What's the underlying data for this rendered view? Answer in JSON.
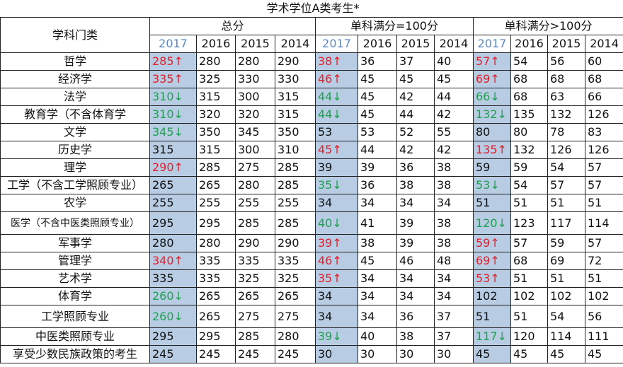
{
  "title": "学术学位A类考生*",
  "row_header": "学科门类",
  "groups": [
    "总分",
    "单科满分=100分",
    "单科满分>100分"
  ],
  "years": [
    "2017",
    "2016",
    "2015",
    "2014"
  ],
  "colors": {
    "up": "#e0202a",
    "down": "#1fa050",
    "highlight": "#b8cce4",
    "year2017": "#5b87c2"
  },
  "rows": [
    {
      "label": "哲学",
      "cells": [
        [
          "285↑",
          "up"
        ],
        [
          "280"
        ],
        [
          "280"
        ],
        [
          "290"
        ],
        [
          "38↑",
          "up"
        ],
        [
          "36"
        ],
        [
          "37"
        ],
        [
          "40"
        ],
        [
          "57↑",
          "up"
        ],
        [
          "54"
        ],
        [
          "56"
        ],
        [
          "60"
        ]
      ]
    },
    {
      "label": "经济学",
      "cells": [
        [
          "335↑",
          "up"
        ],
        [
          "325"
        ],
        [
          "330"
        ],
        [
          "330"
        ],
        [
          "46↑",
          "up"
        ],
        [
          "45"
        ],
        [
          "45"
        ],
        [
          "45"
        ],
        [
          "69↑",
          "up"
        ],
        [
          "68"
        ],
        [
          "68"
        ],
        [
          "68"
        ]
      ]
    },
    {
      "label": "法学",
      "cells": [
        [
          "310↓",
          "down"
        ],
        [
          "315"
        ],
        [
          "300"
        ],
        [
          "315"
        ],
        [
          "44↓",
          "down"
        ],
        [
          "45"
        ],
        [
          "42"
        ],
        [
          "44"
        ],
        [
          "66↓",
          "down"
        ],
        [
          "68"
        ],
        [
          "63"
        ],
        [
          "66"
        ]
      ]
    },
    {
      "label": "教育学（不含体育学",
      "cells": [
        [
          "310↓",
          "down"
        ],
        [
          "320"
        ],
        [
          "320"
        ],
        [
          "315"
        ],
        [
          "44↓",
          "down"
        ],
        [
          "45"
        ],
        [
          "44"
        ],
        [
          "42"
        ],
        [
          "132↓",
          "down"
        ],
        [
          "135"
        ],
        [
          "132"
        ],
        [
          "126"
        ]
      ]
    },
    {
      "label": "文学",
      "cells": [
        [
          "345↓",
          "down"
        ],
        [
          "350"
        ],
        [
          "345"
        ],
        [
          "350"
        ],
        [
          "53"
        ],
        [
          "53"
        ],
        [
          "52"
        ],
        [
          "55"
        ],
        [
          "80"
        ],
        [
          "80"
        ],
        [
          "78"
        ],
        [
          "83"
        ]
      ]
    },
    {
      "label": "历史学",
      "cells": [
        [
          "315"
        ],
        [
          "315"
        ],
        [
          "300"
        ],
        [
          "310"
        ],
        [
          "45↑",
          "up"
        ],
        [
          "44"
        ],
        [
          "42"
        ],
        [
          "42"
        ],
        [
          "135↑",
          "up"
        ],
        [
          "132"
        ],
        [
          "126"
        ],
        [
          "126"
        ]
      ]
    },
    {
      "label": "理学",
      "cells": [
        [
          "290↑",
          "up"
        ],
        [
          "285"
        ],
        [
          "275"
        ],
        [
          "285"
        ],
        [
          "39"
        ],
        [
          "39"
        ],
        [
          "36"
        ],
        [
          "38"
        ],
        [
          "59"
        ],
        [
          "59"
        ],
        [
          "54"
        ],
        [
          "57"
        ]
      ]
    },
    {
      "label": "工学（不含工学照顾专业）",
      "cells": [
        [
          "265"
        ],
        [
          "265"
        ],
        [
          "280"
        ],
        [
          "285"
        ],
        [
          "35↓",
          "down"
        ],
        [
          "36"
        ],
        [
          "38"
        ],
        [
          "38"
        ],
        [
          "53↓",
          "down"
        ],
        [
          "54"
        ],
        [
          "57"
        ],
        [
          "57"
        ]
      ]
    },
    {
      "label": "农学",
      "cells": [
        [
          "255"
        ],
        [
          "255"
        ],
        [
          "255"
        ],
        [
          "255"
        ],
        [
          "34"
        ],
        [
          "34"
        ],
        [
          "34"
        ],
        [
          "34"
        ],
        [
          "51"
        ],
        [
          "51"
        ],
        [
          "51"
        ],
        [
          "51"
        ]
      ]
    },
    {
      "label": "医学（不含中医类照顾专业）",
      "tall": true,
      "small": true,
      "cells": [
        [
          "295"
        ],
        [
          "295"
        ],
        [
          "285"
        ],
        [
          "285"
        ],
        [
          "40↓",
          "down"
        ],
        [
          "41"
        ],
        [
          "39"
        ],
        [
          "38"
        ],
        [
          "120↓",
          "down"
        ],
        [
          "123"
        ],
        [
          "117"
        ],
        [
          "114"
        ]
      ]
    },
    {
      "label": "军事学",
      "cells": [
        [
          "280"
        ],
        [
          "280"
        ],
        [
          "290"
        ],
        [
          "290"
        ],
        [
          "39↑",
          "up"
        ],
        [
          "38"
        ],
        [
          "39"
        ],
        [
          "38"
        ],
        [
          "59↑",
          "up"
        ],
        [
          "57"
        ],
        [
          "59"
        ],
        [
          "57"
        ]
      ]
    },
    {
      "label": "管理学",
      "cells": [
        [
          "340↑",
          "up"
        ],
        [
          "335"
        ],
        [
          "335"
        ],
        [
          "335"
        ],
        [
          "46↑",
          "up"
        ],
        [
          "45"
        ],
        [
          "46"
        ],
        [
          "48"
        ],
        [
          "69↑",
          "up"
        ],
        [
          "68"
        ],
        [
          "69"
        ],
        [
          "72"
        ]
      ]
    },
    {
      "label": "艺术学",
      "cells": [
        [
          "335"
        ],
        [
          "335"
        ],
        [
          "325"
        ],
        [
          "325"
        ],
        [
          "35↑",
          "up"
        ],
        [
          "34"
        ],
        [
          "34"
        ],
        [
          "34"
        ],
        [
          "53↑",
          "up"
        ],
        [
          "51"
        ],
        [
          "51"
        ],
        [
          "51"
        ]
      ]
    },
    {
      "label": "体育学",
      "cells": [
        [
          "260↓",
          "down"
        ],
        [
          "265"
        ],
        [
          "265"
        ],
        [
          "265"
        ],
        [
          "34"
        ],
        [
          "34"
        ],
        [
          "34"
        ],
        [
          "34"
        ],
        [
          "102"
        ],
        [
          "102"
        ],
        [
          "102"
        ],
        [
          "102"
        ]
      ]
    },
    {
      "label": "工学照顾专业",
      "tall": true,
      "cells": [
        [
          "260↓",
          "down"
        ],
        [
          "265"
        ],
        [
          "275"
        ],
        [
          "275"
        ],
        [
          "34"
        ],
        [
          "34"
        ],
        [
          "36"
        ],
        [
          "37"
        ],
        [
          "51"
        ],
        [
          "51"
        ],
        [
          "54"
        ],
        [
          "56"
        ]
      ]
    },
    {
      "label": "中医类照顾专业",
      "cells": [
        [
          "295"
        ],
        [
          "295"
        ],
        [
          "285"
        ],
        [
          "280"
        ],
        [
          "39↓",
          "down"
        ],
        [
          "40"
        ],
        [
          "38"
        ],
        [
          "37"
        ],
        [
          "117↓",
          "down"
        ],
        [
          "120"
        ],
        [
          "114"
        ],
        [
          "111"
        ]
      ]
    },
    {
      "label": "享受少数民族政策的考生",
      "cells": [
        [
          "245"
        ],
        [
          "245"
        ],
        [
          "245"
        ],
        [
          "245"
        ],
        [
          "30"
        ],
        [
          "30"
        ],
        [
          "30"
        ],
        [
          "30"
        ],
        [
          "45"
        ],
        [
          "45"
        ],
        [
          "45"
        ],
        [
          "45"
        ]
      ]
    }
  ]
}
